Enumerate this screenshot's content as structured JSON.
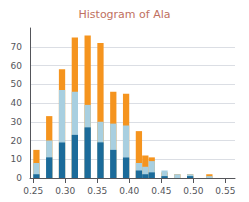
{
  "chart_data": {
    "type": "bar",
    "title": "Histogram of Ala",
    "x": [
      0.255,
      0.265,
      0.275,
      0.285,
      0.295,
      0.305,
      0.315,
      0.325,
      0.335,
      0.345,
      0.355,
      0.365,
      0.375,
      0.385,
      0.395,
      0.405,
      0.415,
      0.425,
      0.435,
      0.445,
      0.455,
      0.465,
      0.475,
      0.485,
      0.495,
      0.505,
      0.515,
      0.525,
      0.535,
      0.545,
      0.555
    ],
    "series": [
      {
        "color": "#f5941e",
        "values": [
          15,
          0,
          33,
          0,
          58,
          0,
          75,
          0,
          76,
          0,
          72,
          0,
          46,
          0,
          45,
          0,
          25,
          12,
          11,
          0,
          3,
          0,
          2,
          0,
          2,
          0,
          0,
          2,
          0,
          0,
          0
        ]
      },
      {
        "color": "#a8cfe0",
        "values": [
          8,
          0,
          20,
          0,
          47,
          0,
          46,
          0,
          39,
          0,
          30,
          0,
          29,
          0,
          28,
          0,
          8,
          6,
          9,
          0,
          4,
          0,
          2,
          0,
          2,
          0,
          0,
          1,
          0,
          0,
          0
        ]
      },
      {
        "color": "#1b6b9a",
        "values": [
          2,
          0,
          11,
          0,
          19,
          0,
          23,
          0,
          27,
          0,
          19,
          0,
          15,
          0,
          11,
          0,
          4,
          2,
          3,
          0,
          1,
          0,
          0,
          0,
          1,
          0,
          0,
          0,
          0,
          0,
          0
        ]
      }
    ],
    "xlim": [
      0.245,
      0.565
    ],
    "xticks": [
      0.25,
      {
        "value": 0.3,
        "label": "0.30"
      },
      0.35,
      {
        "value": 0.4,
        "label": "0.40"
      },
      0.45,
      {
        "value": 0.5,
        "label": "0.50"
      },
      0.55
    ],
    "ylim": [
      0,
      80
    ],
    "yticks": [
      0,
      10,
      20,
      30,
      40,
      50,
      60,
      70
    ],
    "grid": true
  }
}
